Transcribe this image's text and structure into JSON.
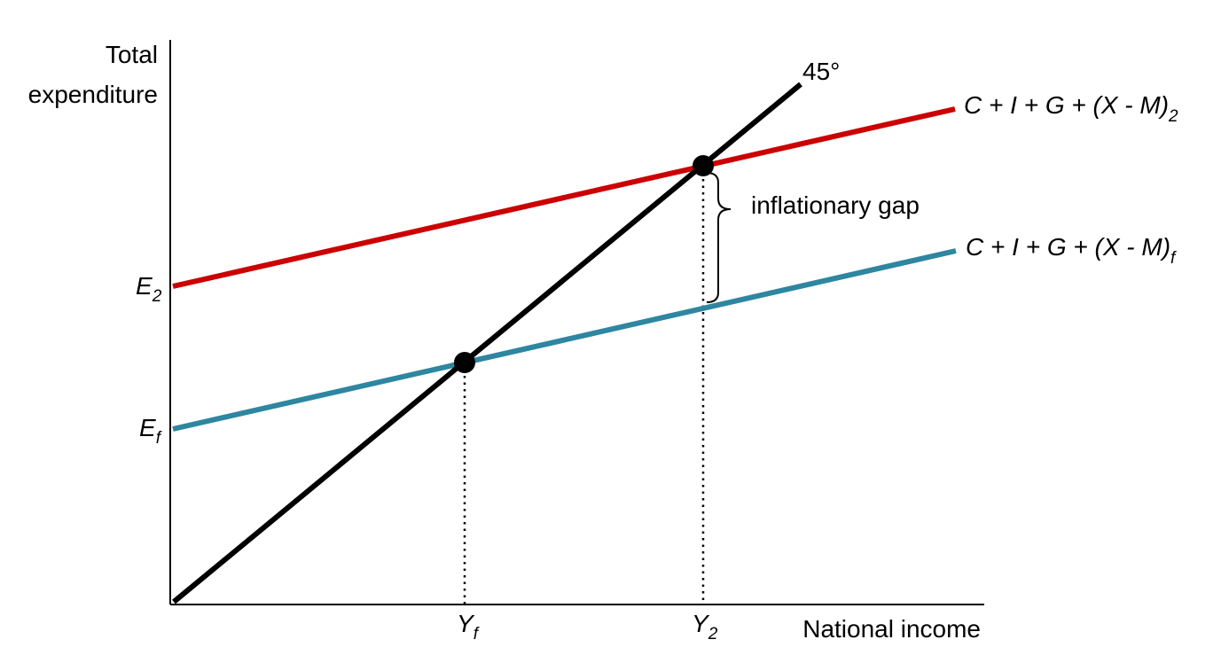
{
  "axes": {
    "y_label_line1": "Total",
    "y_label_line2": "expenditure",
    "x_label": "National income"
  },
  "lines": {
    "degree_label": "45°",
    "red_curve": {
      "label_main": "C + I + G + (X - M)",
      "label_sub": "2",
      "color": "#cc0000"
    },
    "teal_curve": {
      "label_main": "C + I + G + (X - M)",
      "label_sub": "f",
      "color": "#2e86a0"
    },
    "line_45_color": "#000000"
  },
  "intercepts": {
    "e2": {
      "main": "E",
      "sub": "2"
    },
    "ef": {
      "main": "E",
      "sub": "f"
    }
  },
  "x_ticks": {
    "yf": {
      "main": "Y",
      "sub": "f"
    },
    "y2": {
      "main": "Y",
      "sub": "2"
    }
  },
  "gap_label": "inflationary gap"
}
